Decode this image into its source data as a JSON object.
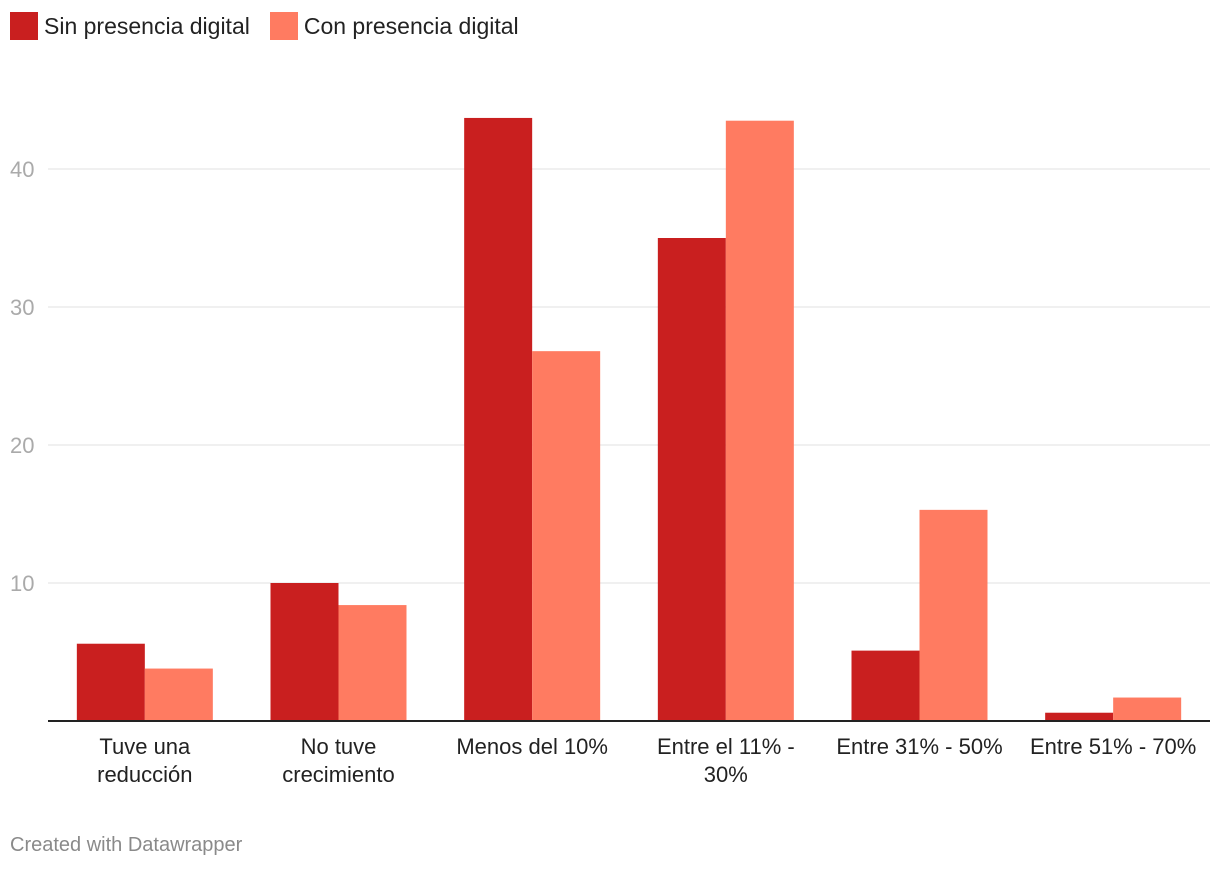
{
  "legend": {
    "series_1": "Sin presencia digital",
    "series_2": "Con presencia digital"
  },
  "footer": {
    "credit": "Created with Datawrapper"
  },
  "colors": {
    "series_1": "#c91f1f",
    "series_2": "#ff7b61",
    "grid": "#e0e0e0",
    "axis": "#222222",
    "tick_label": "#aaaaaa",
    "category_label": "#222222"
  },
  "chart_data": {
    "type": "bar",
    "title": "",
    "xlabel": "",
    "ylabel": "",
    "ylim": [
      0,
      45
    ],
    "yticks": [
      10,
      20,
      30,
      40
    ],
    "grid": true,
    "legend_position": "top-left",
    "categories": [
      [
        "Tuve una",
        "reducción"
      ],
      [
        "No tuve",
        "crecimiento"
      ],
      [
        "Menos del 10%"
      ],
      [
        "Entre el 11% -",
        "30%"
      ],
      [
        "Entre 31% - 50%"
      ],
      [
        "Entre 51% - 70%"
      ]
    ],
    "series": [
      {
        "name": "Sin presencia digital",
        "values": [
          5.6,
          10.0,
          43.7,
          35.0,
          5.1,
          0.6
        ]
      },
      {
        "name": "Con presencia digital",
        "values": [
          3.8,
          8.4,
          26.8,
          43.5,
          15.3,
          1.7
        ]
      }
    ]
  }
}
